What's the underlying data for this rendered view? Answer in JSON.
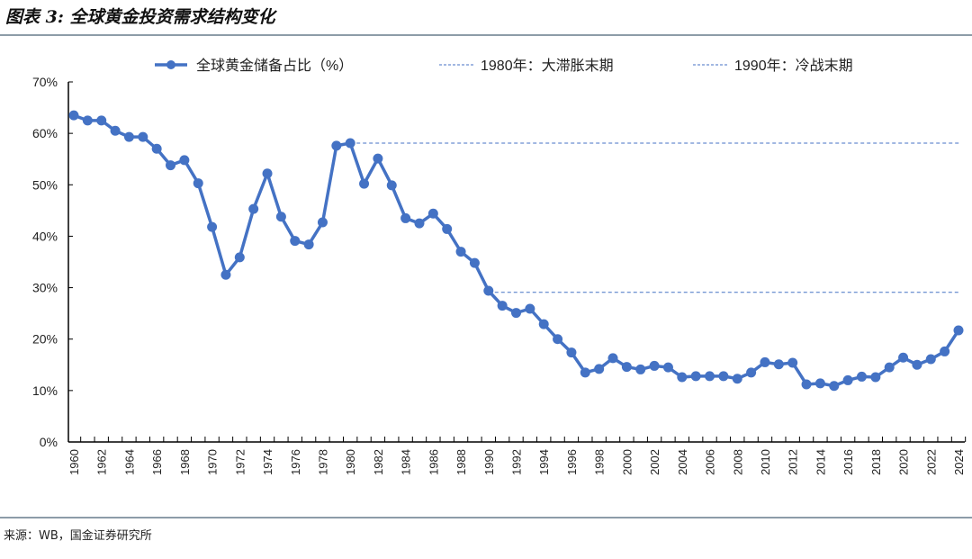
{
  "title": "图表 3: 全球黄金投资需求结构变化",
  "source": "来源：WB，国金证券研究所",
  "colors": {
    "series": "#4472c4",
    "rule": "#8d9ca8"
  },
  "chart_data": {
    "type": "line",
    "title": "",
    "xlabel": "",
    "ylabel": "",
    "ylim": [
      0,
      70
    ],
    "yticks": [
      "0%",
      "10%",
      "20%",
      "30%",
      "40%",
      "50%",
      "60%",
      "70%"
    ],
    "grid": false,
    "legend_placement": "top",
    "x": [
      1960,
      1961,
      1962,
      1963,
      1964,
      1965,
      1966,
      1967,
      1968,
      1969,
      1970,
      1971,
      1972,
      1973,
      1974,
      1975,
      1976,
      1977,
      1978,
      1979,
      1980,
      1981,
      1982,
      1983,
      1984,
      1985,
      1986,
      1987,
      1988,
      1989,
      1990,
      1991,
      1992,
      1993,
      1994,
      1995,
      1996,
      1997,
      1998,
      1999,
      2000,
      2001,
      2002,
      2003,
      2004,
      2005,
      2006,
      2007,
      2008,
      2009,
      2010,
      2011,
      2012,
      2013,
      2014,
      2015,
      2016,
      2017,
      2018,
      2019,
      2020,
      2021,
      2022,
      2023,
      2024
    ],
    "series": [
      {
        "name": "全球黄金储备占比（%）",
        "values": [
          63.5,
          62.5,
          62.5,
          60.5,
          59.3,
          59.3,
          57.0,
          53.8,
          54.8,
          50.3,
          41.8,
          32.5,
          35.9,
          45.3,
          52.2,
          43.8,
          39.1,
          38.4,
          42.7,
          57.6,
          58.1,
          50.2,
          55.1,
          49.9,
          43.5,
          42.5,
          44.4,
          41.4,
          37.0,
          34.8,
          29.4,
          26.5,
          25.1,
          25.9,
          22.9,
          20.0,
          17.4,
          13.5,
          14.2,
          16.3,
          14.6,
          14.1,
          14.8,
          14.5,
          12.6,
          12.8,
          12.8,
          12.8,
          12.3,
          13.5,
          15.5,
          15.1,
          15.4,
          11.2,
          11.4,
          10.9,
          12.0,
          12.7,
          12.6,
          14.5,
          16.4,
          15.0,
          16.1,
          17.6,
          21.7
        ]
      }
    ],
    "reference_lines": [
      {
        "name": "1980年：大滞胀末期",
        "value": 58.1,
        "from": 1980
      },
      {
        "name": "1990年：冷战末期",
        "value": 29.1,
        "from": 1990
      }
    ]
  }
}
